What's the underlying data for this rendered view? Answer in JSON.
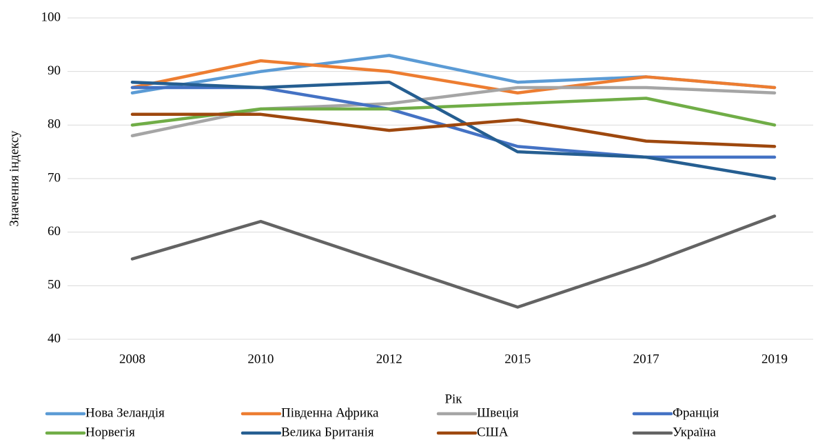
{
  "chart_data": {
    "type": "line",
    "x_label": "Рік",
    "y_label": "Значення індексу",
    "categories": [
      "2008",
      "2010",
      "2012",
      "2015",
      "2017",
      "2019"
    ],
    "series": [
      {
        "name": "Нова Зеландія",
        "color": "#5b9bd5",
        "values": [
          86,
          90,
          93,
          88,
          89,
          87
        ]
      },
      {
        "name": "Південна Африка",
        "color": "#ed7d31",
        "values": [
          87,
          92,
          90,
          86,
          89,
          87
        ]
      },
      {
        "name": "Швеція",
        "color": "#a5a5a5",
        "values": [
          78,
          83,
          84,
          87,
          87,
          86
        ]
      },
      {
        "name": "Франція",
        "color": "#4472c4",
        "values": [
          87,
          87,
          83,
          76,
          74,
          74
        ]
      },
      {
        "name": "Норвегія",
        "color": "#70ad47",
        "values": [
          80,
          83,
          83,
          84,
          85,
          80
        ]
      },
      {
        "name": "Велика Британія",
        "color": "#255e91",
        "values": [
          88,
          87,
          88,
          75,
          74,
          70
        ]
      },
      {
        "name": "США",
        "color": "#9e480e",
        "values": [
          82,
          82,
          79,
          81,
          77,
          76
        ]
      },
      {
        "name": "Україна",
        "color": "#636363",
        "values": [
          55,
          62,
          54,
          46,
          54,
          63
        ]
      }
    ],
    "ylim": [
      40,
      100
    ],
    "yticks": [
      40,
      50,
      60,
      70,
      80,
      90,
      100
    ],
    "grid": true,
    "legend": "bottom"
  }
}
